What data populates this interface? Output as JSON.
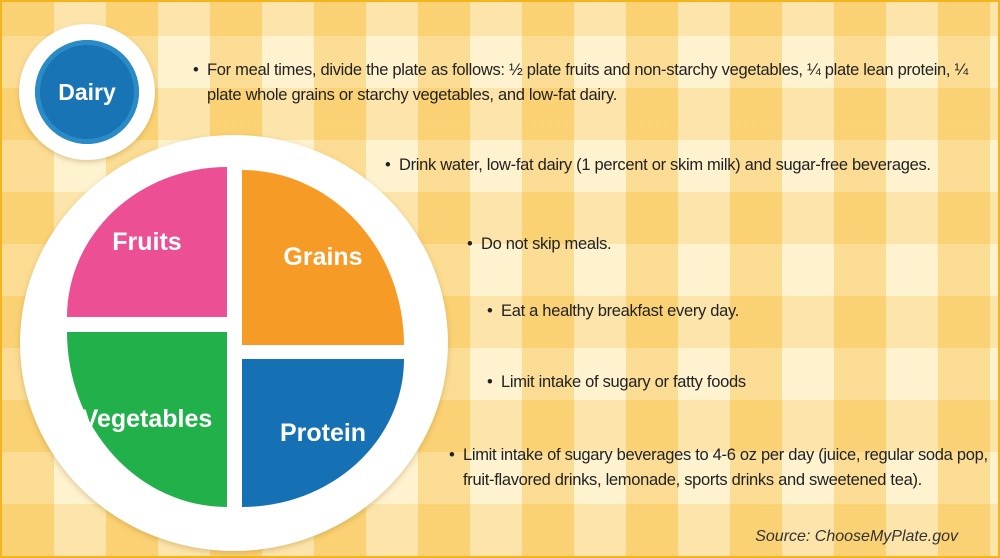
{
  "plate": {
    "fruits": "Fruits",
    "grains": "Grains",
    "vegetables": "Vegetables",
    "protein": "Protein",
    "dairy": "Dairy"
  },
  "bullets": [
    "For meal times, divide the plate as follows: ½ plate fruits and non-starchy vegetables, ¼ plate lean protein, ¼ plate whole grains or starchy vegetables, and low-fat dairy.",
    "Drink water, low-fat dairy (1 percent or skim milk) and sugar-free beverages.",
    "Do not skip meals.",
    "Eat a healthy breakfast every day.",
    "Limit intake of sugary or fatty foods",
    "Limit intake of sugary beverages to 4-6 oz per day (juice, regular soda pop, fruit-flavored drinks, lemonade, sports drinks and sweetened tea)."
  ],
  "bullet_symbol": "•",
  "source": "Source: ChooseMyPlate.gov",
  "colors": {
    "fruits": "#ec4f94",
    "grains": "#f59b26",
    "vegetables": "#22b04b",
    "protein": "#1670b4",
    "dairy": "#1874b5"
  }
}
